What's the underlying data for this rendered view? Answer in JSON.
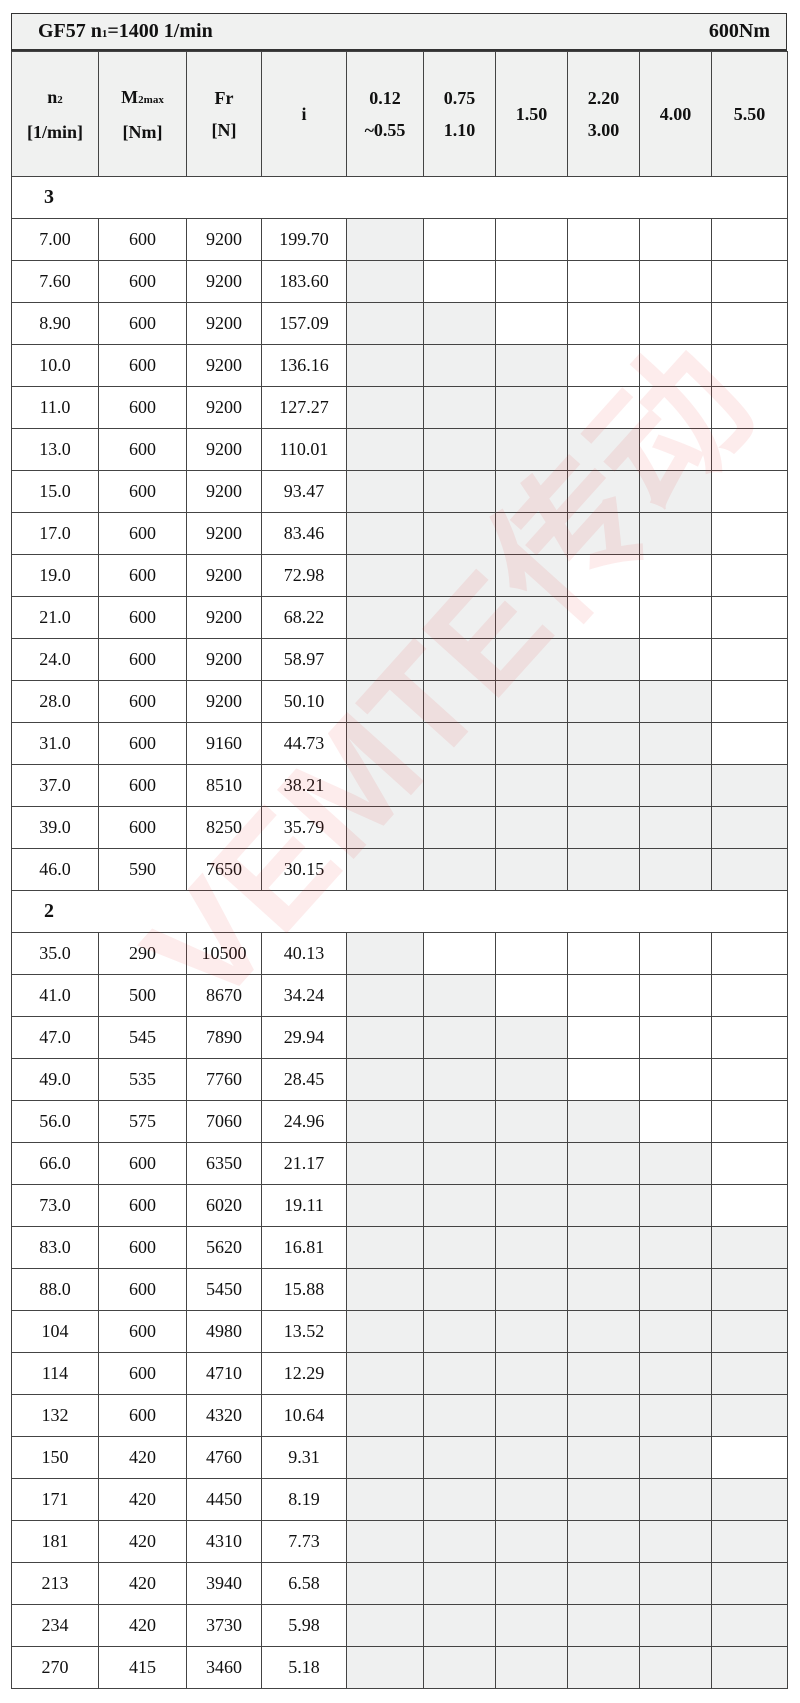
{
  "title": {
    "left": "GF57 n",
    "left_sub": "1",
    "left_rest": "=1400 1/min",
    "right": "600Nm"
  },
  "headers": [
    {
      "l1": "n",
      "sub": "2",
      "l2": "[1/min]"
    },
    {
      "l1": "M",
      "sub": "2max",
      "l2": "[Nm]"
    },
    {
      "l1": "Fr",
      "sub": "",
      "l2": "[N]"
    },
    {
      "l1": "i",
      "sub": "",
      "l2": ""
    },
    {
      "l1": "0.12",
      "sub": "",
      "l2": "~0.55"
    },
    {
      "l1": "0.75",
      "sub": "",
      "l2": "1.10"
    },
    {
      "l1": "1.50",
      "sub": "",
      "l2": ""
    },
    {
      "l1": "2.20",
      "sub": "",
      "l2": "3.00"
    },
    {
      "l1": "4.00",
      "sub": "",
      "l2": ""
    },
    {
      "l1": "5.50",
      "sub": "",
      "l2": ""
    }
  ],
  "watermark": "VEMTE传动",
  "shade_color": "#eff0f0",
  "sections": [
    {
      "label": "3",
      "rows": [
        {
          "n2": "7.00",
          "m2": "600",
          "fr": "9200",
          "i": "199.70",
          "avail": [
            1,
            0,
            0,
            0,
            0,
            0
          ]
        },
        {
          "n2": "7.60",
          "m2": "600",
          "fr": "9200",
          "i": "183.60",
          "avail": [
            1,
            0,
            0,
            0,
            0,
            0
          ]
        },
        {
          "n2": "8.90",
          "m2": "600",
          "fr": "9200",
          "i": "157.09",
          "avail": [
            1,
            1,
            0,
            0,
            0,
            0
          ]
        },
        {
          "n2": "10.0",
          "m2": "600",
          "fr": "9200",
          "i": "136.16",
          "avail": [
            1,
            1,
            1,
            0,
            0,
            0
          ]
        },
        {
          "n2": "11.0",
          "m2": "600",
          "fr": "9200",
          "i": "127.27",
          "avail": [
            1,
            1,
            1,
            0,
            0,
            0
          ]
        },
        {
          "n2": "13.0",
          "m2": "600",
          "fr": "9200",
          "i": "110.01",
          "avail": [
            1,
            1,
            1,
            1,
            0,
            0
          ]
        },
        {
          "n2": "15.0",
          "m2": "600",
          "fr": "9200",
          "i": "93.47",
          "avail": [
            1,
            1,
            1,
            1,
            1,
            0
          ]
        },
        {
          "n2": "17.0",
          "m2": "600",
          "fr": "9200",
          "i": "83.46",
          "avail": [
            1,
            1,
            1,
            1,
            1,
            0
          ]
        },
        {
          "n2": "19.0",
          "m2": "600",
          "fr": "9200",
          "i": "72.98",
          "avail": [
            1,
            1,
            1,
            0,
            0,
            0
          ]
        },
        {
          "n2": "21.0",
          "m2": "600",
          "fr": "9200",
          "i": "68.22",
          "avail": [
            1,
            1,
            1,
            0,
            0,
            0
          ]
        },
        {
          "n2": "24.0",
          "m2": "600",
          "fr": "9200",
          "i": "58.97",
          "avail": [
            1,
            1,
            1,
            1,
            0,
            0
          ]
        },
        {
          "n2": "28.0",
          "m2": "600",
          "fr": "9200",
          "i": "50.10",
          "avail": [
            1,
            1,
            1,
            1,
            1,
            0
          ]
        },
        {
          "n2": "31.0",
          "m2": "600",
          "fr": "9160",
          "i": "44.73",
          "avail": [
            1,
            1,
            1,
            1,
            1,
            0
          ]
        },
        {
          "n2": "37.0",
          "m2": "600",
          "fr": "8510",
          "i": "38.21",
          "avail": [
            1,
            1,
            1,
            1,
            1,
            1
          ]
        },
        {
          "n2": "39.0",
          "m2": "600",
          "fr": "8250",
          "i": "35.79",
          "avail": [
            1,
            1,
            1,
            1,
            1,
            1
          ]
        },
        {
          "n2": "46.0",
          "m2": "590",
          "fr": "7650",
          "i": "30.15",
          "avail": [
            1,
            1,
            1,
            1,
            1,
            1
          ]
        }
      ]
    },
    {
      "label": "2",
      "rows": [
        {
          "n2": "35.0",
          "m2": "290",
          "fr": "10500",
          "i": "40.13",
          "avail": [
            1,
            0,
            0,
            0,
            0,
            0
          ]
        },
        {
          "n2": "41.0",
          "m2": "500",
          "fr": "8670",
          "i": "34.24",
          "avail": [
            1,
            1,
            0,
            0,
            0,
            0
          ]
        },
        {
          "n2": "47.0",
          "m2": "545",
          "fr": "7890",
          "i": "29.94",
          "avail": [
            1,
            1,
            1,
            0,
            0,
            0
          ]
        },
        {
          "n2": "49.0",
          "m2": "535",
          "fr": "7760",
          "i": "28.45",
          "avail": [
            1,
            1,
            1,
            0,
            0,
            0
          ]
        },
        {
          "n2": "56.0",
          "m2": "575",
          "fr": "7060",
          "i": "24.96",
          "avail": [
            1,
            1,
            1,
            1,
            0,
            0
          ]
        },
        {
          "n2": "66.0",
          "m2": "600",
          "fr": "6350",
          "i": "21.17",
          "avail": [
            1,
            1,
            1,
            1,
            1,
            0
          ]
        },
        {
          "n2": "73.0",
          "m2": "600",
          "fr": "6020",
          "i": "19.11",
          "avail": [
            1,
            1,
            1,
            1,
            1,
            0
          ]
        },
        {
          "n2": "83.0",
          "m2": "600",
          "fr": "5620",
          "i": "16.81",
          "avail": [
            1,
            1,
            1,
            1,
            1,
            1
          ]
        },
        {
          "n2": "88.0",
          "m2": "600",
          "fr": "5450",
          "i": "15.88",
          "avail": [
            1,
            1,
            1,
            1,
            1,
            1
          ]
        },
        {
          "n2": "104",
          "m2": "600",
          "fr": "4980",
          "i": "13.52",
          "avail": [
            1,
            1,
            1,
            1,
            1,
            1
          ]
        },
        {
          "n2": "114",
          "m2": "600",
          "fr": "4710",
          "i": "12.29",
          "avail": [
            1,
            1,
            1,
            1,
            1,
            1
          ]
        },
        {
          "n2": "132",
          "m2": "600",
          "fr": "4320",
          "i": "10.64",
          "avail": [
            1,
            1,
            1,
            1,
            1,
            1
          ]
        },
        {
          "n2": "150",
          "m2": "420",
          "fr": "4760",
          "i": "9.31",
          "avail": [
            1,
            1,
            1,
            1,
            1,
            0
          ]
        },
        {
          "n2": "171",
          "m2": "420",
          "fr": "4450",
          "i": "8.19",
          "avail": [
            1,
            1,
            1,
            1,
            1,
            1
          ]
        },
        {
          "n2": "181",
          "m2": "420",
          "fr": "4310",
          "i": "7.73",
          "avail": [
            1,
            1,
            1,
            1,
            1,
            1
          ]
        },
        {
          "n2": "213",
          "m2": "420",
          "fr": "3940",
          "i": "6.58",
          "avail": [
            1,
            1,
            1,
            1,
            1,
            1
          ]
        },
        {
          "n2": "234",
          "m2": "420",
          "fr": "3730",
          "i": "5.98",
          "avail": [
            1,
            1,
            1,
            1,
            1,
            1
          ]
        },
        {
          "n2": "270",
          "m2": "415",
          "fr": "3460",
          "i": "5.18",
          "avail": [
            1,
            1,
            1,
            1,
            1,
            1
          ]
        }
      ]
    }
  ]
}
